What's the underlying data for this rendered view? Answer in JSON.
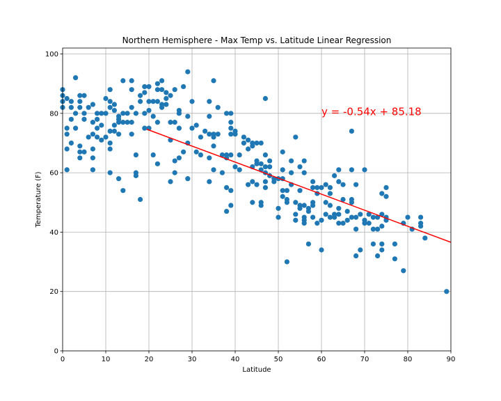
{
  "chart_data": {
    "type": "scatter",
    "title": "Northern Hemisphere - Max Temp vs. Latitude Linear Regression",
    "xlabel": "Latitude",
    "ylabel": "Temperature (F)",
    "xlim": [
      0,
      90
    ],
    "ylim": [
      0,
      102
    ],
    "xticks": [
      0,
      10,
      20,
      30,
      40,
      50,
      60,
      70,
      80,
      90
    ],
    "yticks": [
      0,
      20,
      40,
      60,
      80,
      100
    ],
    "grid": true,
    "colors": {
      "points": "#1f77b4",
      "regression": "#ff0000",
      "annotation": "#ff0000"
    },
    "annotation": {
      "text": "y = -0.54x + 85.18",
      "x": 60,
      "y": 80.5
    },
    "regression": {
      "slope": -0.54,
      "intercept": 85.18,
      "x_range": [
        19.5,
        90
      ]
    },
    "series": [
      {
        "points": [
          [
            0,
            88
          ],
          [
            0,
            86
          ],
          [
            0,
            84
          ],
          [
            0,
            82
          ],
          [
            1,
            85
          ],
          [
            1,
            75
          ],
          [
            1,
            73
          ],
          [
            1,
            68
          ],
          [
            1,
            61
          ],
          [
            2,
            84
          ],
          [
            2,
            82
          ],
          [
            2,
            78
          ],
          [
            2,
            70
          ],
          [
            3,
            92
          ],
          [
            3,
            80
          ],
          [
            3,
            75
          ],
          [
            4,
            86
          ],
          [
            4,
            84
          ],
          [
            4,
            82
          ],
          [
            4,
            69
          ],
          [
            4,
            67
          ],
          [
            4,
            65
          ],
          [
            5,
            86
          ],
          [
            5,
            80
          ],
          [
            5,
            78
          ],
          [
            5,
            67
          ],
          [
            6,
            82
          ],
          [
            6,
            72
          ],
          [
            7,
            83
          ],
          [
            7,
            77
          ],
          [
            7,
            73
          ],
          [
            7,
            68
          ],
          [
            7,
            65
          ],
          [
            7,
            61
          ],
          [
            8,
            80
          ],
          [
            8,
            78
          ],
          [
            8,
            75
          ],
          [
            8,
            72
          ],
          [
            9,
            80
          ],
          [
            9,
            76
          ],
          [
            9,
            71
          ],
          [
            10,
            85
          ],
          [
            10,
            80
          ],
          [
            10,
            72
          ],
          [
            11,
            88
          ],
          [
            11,
            84
          ],
          [
            11,
            82
          ],
          [
            11,
            74
          ],
          [
            11,
            70
          ],
          [
            11,
            68
          ],
          [
            11,
            60
          ],
          [
            12,
            83
          ],
          [
            12,
            81
          ],
          [
            12,
            76
          ],
          [
            12,
            74
          ],
          [
            13,
            79
          ],
          [
            13,
            78
          ],
          [
            13,
            77
          ],
          [
            13,
            73
          ],
          [
            13,
            58
          ],
          [
            14,
            91
          ],
          [
            14,
            80
          ],
          [
            14,
            77
          ],
          [
            14,
            54
          ],
          [
            15,
            80
          ],
          [
            15,
            77
          ],
          [
            16,
            91
          ],
          [
            16,
            88
          ],
          [
            16,
            82
          ],
          [
            16,
            77
          ],
          [
            16,
            73
          ],
          [
            17,
            80
          ],
          [
            17,
            66
          ],
          [
            17,
            60
          ],
          [
            17,
            59
          ],
          [
            18,
            86
          ],
          [
            18,
            84
          ],
          [
            18,
            51
          ],
          [
            19,
            89
          ],
          [
            19,
            87
          ],
          [
            19,
            80
          ],
          [
            19,
            75
          ],
          [
            20,
            89
          ],
          [
            20,
            84
          ],
          [
            20,
            81
          ],
          [
            20,
            75
          ],
          [
            21,
            84
          ],
          [
            21,
            79
          ],
          [
            21,
            66
          ],
          [
            22,
            90
          ],
          [
            22,
            88
          ],
          [
            22,
            84
          ],
          [
            22,
            77
          ],
          [
            22,
            63
          ],
          [
            23,
            91
          ],
          [
            23,
            88
          ],
          [
            23,
            83
          ],
          [
            23,
            82
          ],
          [
            24,
            87
          ],
          [
            24,
            85
          ],
          [
            24,
            83
          ],
          [
            25,
            86
          ],
          [
            25,
            77
          ],
          [
            25,
            71
          ],
          [
            25,
            57
          ],
          [
            26,
            88
          ],
          [
            26,
            77
          ],
          [
            26,
            64
          ],
          [
            26,
            60
          ],
          [
            27,
            81
          ],
          [
            27,
            80
          ],
          [
            27,
            75
          ],
          [
            27,
            65
          ],
          [
            28,
            89
          ],
          [
            28,
            67
          ],
          [
            29,
            94
          ],
          [
            29,
            79
          ],
          [
            29,
            70
          ],
          [
            29,
            58
          ],
          [
            30,
            84
          ],
          [
            30,
            75
          ],
          [
            31,
            76
          ],
          [
            31,
            67
          ],
          [
            32,
            72
          ],
          [
            32,
            66
          ],
          [
            33,
            74
          ],
          [
            34,
            84
          ],
          [
            34,
            79
          ],
          [
            34,
            73
          ],
          [
            34,
            65
          ],
          [
            34,
            57
          ],
          [
            35,
            91
          ],
          [
            35,
            73
          ],
          [
            35,
            72
          ],
          [
            35,
            69
          ],
          [
            35,
            61
          ],
          [
            36,
            82
          ],
          [
            36,
            73
          ],
          [
            37,
            66
          ],
          [
            37,
            60
          ],
          [
            38,
            80
          ],
          [
            38,
            66
          ],
          [
            38,
            65
          ],
          [
            38,
            55
          ],
          [
            38,
            47
          ],
          [
            39,
            80
          ],
          [
            39,
            77
          ],
          [
            39,
            75
          ],
          [
            39,
            73
          ],
          [
            39,
            66
          ],
          [
            39,
            54
          ],
          [
            39,
            49
          ],
          [
            40,
            74
          ],
          [
            40,
            73
          ],
          [
            40,
            62
          ],
          [
            41,
            61
          ],
          [
            41,
            66
          ],
          [
            42,
            72
          ],
          [
            42,
            70
          ],
          [
            43,
            71
          ],
          [
            43,
            68
          ],
          [
            43,
            56
          ],
          [
            44,
            70
          ],
          [
            44,
            69
          ],
          [
            44,
            62
          ],
          [
            44,
            57
          ],
          [
            44,
            50
          ],
          [
            45,
            70
          ],
          [
            45,
            64
          ],
          [
            45,
            63
          ],
          [
            45,
            56
          ],
          [
            46,
            70
          ],
          [
            46,
            63
          ],
          [
            46,
            61
          ],
          [
            46,
            50
          ],
          [
            46,
            49
          ],
          [
            47,
            85
          ],
          [
            47,
            66
          ],
          [
            47,
            62
          ],
          [
            47,
            60
          ],
          [
            47,
            57
          ],
          [
            47,
            55
          ],
          [
            48,
            62
          ],
          [
            48,
            64
          ],
          [
            48,
            59
          ],
          [
            49,
            58
          ],
          [
            49,
            57
          ],
          [
            50,
            58
          ],
          [
            50,
            48
          ],
          [
            50,
            45
          ],
          [
            51,
            67
          ],
          [
            51,
            61
          ],
          [
            51,
            58
          ],
          [
            51,
            54
          ],
          [
            51,
            52
          ],
          [
            52,
            54
          ],
          [
            52,
            51
          ],
          [
            52,
            50
          ],
          [
            52,
            30
          ],
          [
            53,
            64
          ],
          [
            53,
            60
          ],
          [
            53,
            56
          ],
          [
            54,
            72
          ],
          [
            54,
            50
          ],
          [
            54,
            46
          ],
          [
            54,
            44
          ],
          [
            55,
            62
          ],
          [
            55,
            54
          ],
          [
            55,
            49
          ],
          [
            55,
            48
          ],
          [
            56,
            64
          ],
          [
            56,
            60
          ],
          [
            56,
            49
          ],
          [
            56,
            45
          ],
          [
            56,
            44
          ],
          [
            56,
            43
          ],
          [
            57,
            48
          ],
          [
            57,
            47
          ],
          [
            57,
            36
          ],
          [
            58,
            57
          ],
          [
            58,
            55
          ],
          [
            58,
            50
          ],
          [
            58,
            49
          ],
          [
            58,
            45
          ],
          [
            59,
            55
          ],
          [
            59,
            53
          ],
          [
            59,
            43
          ],
          [
            60,
            55
          ],
          [
            60,
            44
          ],
          [
            60,
            34
          ],
          [
            61,
            56
          ],
          [
            61,
            50
          ],
          [
            61,
            46
          ],
          [
            62,
            55
          ],
          [
            62,
            53
          ],
          [
            62,
            49
          ],
          [
            62,
            45
          ],
          [
            63,
            59
          ],
          [
            63,
            46
          ],
          [
            63,
            45
          ],
          [
            64,
            61
          ],
          [
            64,
            57
          ],
          [
            64,
            48
          ],
          [
            64,
            46
          ],
          [
            64,
            43
          ],
          [
            65,
            56
          ],
          [
            65,
            51
          ],
          [
            65,
            43
          ],
          [
            66,
            47
          ],
          [
            66,
            44
          ],
          [
            67,
            74
          ],
          [
            67,
            61
          ],
          [
            67,
            51
          ],
          [
            67,
            50
          ],
          [
            67,
            45
          ],
          [
            68,
            56
          ],
          [
            68,
            45
          ],
          [
            68,
            41
          ],
          [
            68,
            32
          ],
          [
            69,
            46
          ],
          [
            69,
            34
          ],
          [
            70,
            61
          ],
          [
            70,
            44
          ],
          [
            70,
            43
          ],
          [
            71,
            46
          ],
          [
            71,
            43
          ],
          [
            72,
            45
          ],
          [
            72,
            41
          ],
          [
            72,
            36
          ],
          [
            73,
            45
          ],
          [
            73,
            41
          ],
          [
            73,
            32
          ],
          [
            74,
            46
          ],
          [
            74,
            42
          ],
          [
            74,
            36
          ],
          [
            74,
            34
          ],
          [
            74,
            53
          ],
          [
            75,
            55
          ],
          [
            75,
            52
          ],
          [
            75,
            45
          ],
          [
            75,
            44
          ],
          [
            77,
            36
          ],
          [
            77,
            31
          ],
          [
            79,
            43
          ],
          [
            79,
            27
          ],
          [
            80,
            45
          ],
          [
            81,
            41
          ],
          [
            83,
            45
          ],
          [
            83,
            43
          ],
          [
            83,
            42
          ],
          [
            84,
            38
          ],
          [
            89,
            20
          ]
        ]
      }
    ]
  }
}
